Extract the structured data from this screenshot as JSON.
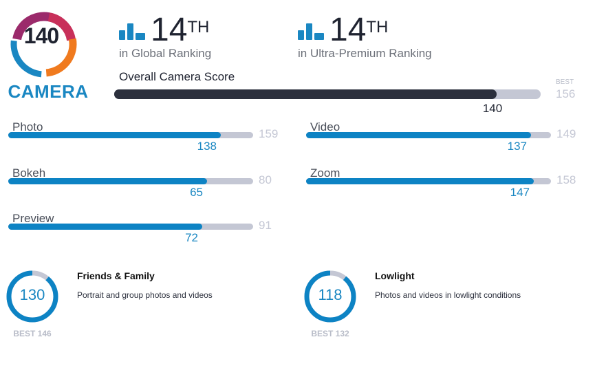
{
  "badge": {
    "score": "140",
    "label": "CAMERA",
    "colors": [
      "#9b2a6b",
      "#c8305a",
      "#f07a1e",
      "#1a87c2"
    ]
  },
  "global_rank": {
    "number": "14",
    "suffix": "TH",
    "caption": "in Global Ranking",
    "icon": "bar-chart-icon"
  },
  "segment_rank": {
    "number": "14",
    "suffix": "TH",
    "caption": "in Ultra-Premium Ranking",
    "icon": "bar-chart-icon"
  },
  "overall": {
    "title": "Overall Camera Score",
    "score": 140,
    "best_label": "BEST",
    "best": 156
  },
  "subscores": [
    {
      "label": "Photo",
      "score": 138,
      "best": 159
    },
    {
      "label": "Video",
      "score": 137,
      "best": 149
    },
    {
      "label": "Bokeh",
      "score": 65,
      "best": 80
    },
    {
      "label": "Zoom",
      "score": 147,
      "best": 158
    },
    {
      "label": "Preview",
      "score": 72,
      "best": 91
    }
  ],
  "rings": [
    {
      "score": 130,
      "best": 146,
      "best_text": "BEST 146",
      "title": "Friends & Family",
      "description": "Portrait and group photos and videos"
    },
    {
      "score": 118,
      "best": 132,
      "best_text": "BEST 132",
      "title": "Lowlight",
      "description": "Photos and videos in lowlight conditions"
    }
  ],
  "colors": {
    "accent": "#1a87c2",
    "bar_fill": "#0d83c4",
    "track": "#c4c7d4",
    "overall_fill": "#2c303d"
  }
}
